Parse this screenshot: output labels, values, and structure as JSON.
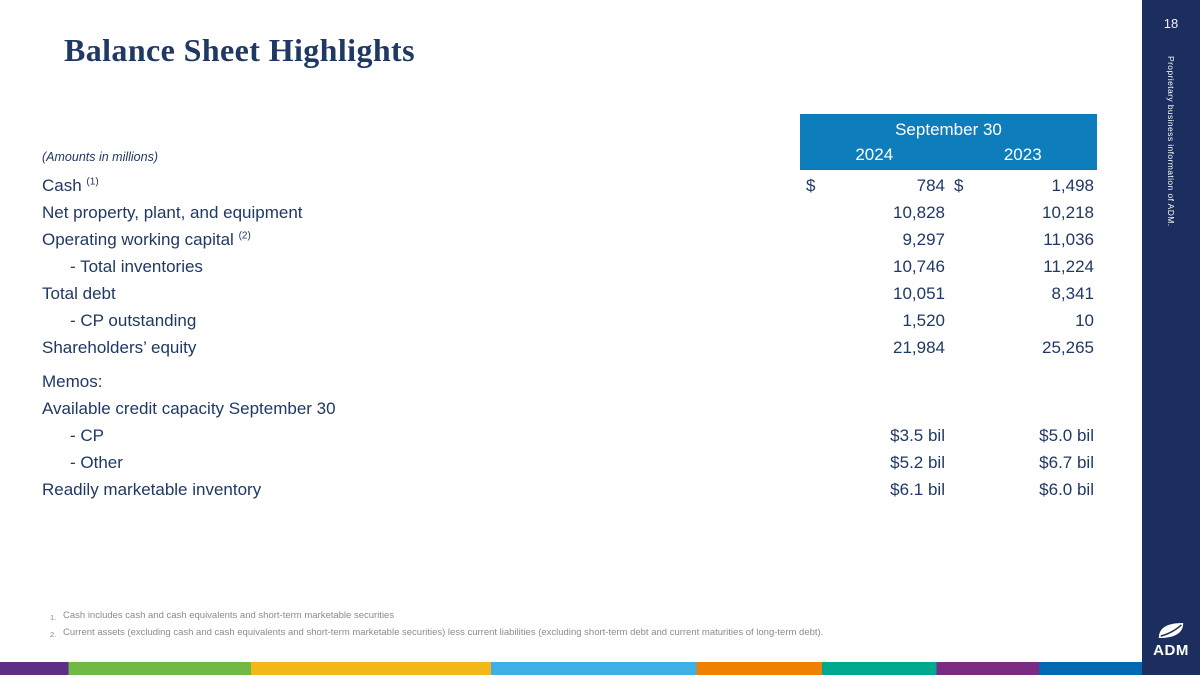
{
  "page": {
    "title": "Balance Sheet Highlights",
    "page_number": "18",
    "sidebar_note": "Proprietary business information of ADM.",
    "logo_text": "ADM"
  },
  "table": {
    "units_note": "(Amounts in millions)",
    "currency_symbol": "$",
    "header": {
      "group": "September 30",
      "col1": "2024",
      "col2": "2023"
    },
    "rows": [
      {
        "label": "Cash",
        "sup": "(1)",
        "dollar": true,
        "v2024": "784",
        "v2023": "1,498"
      },
      {
        "label": "Net property, plant, and equipment",
        "v2024": "10,828",
        "v2023": "10,218"
      },
      {
        "label": "Operating working capital",
        "sup": "(2)",
        "v2024": "9,297",
        "v2023": "11,036"
      },
      {
        "label": "- Total inventories",
        "indent": true,
        "v2024": "10,746",
        "v2023": "11,224"
      },
      {
        "label": "Total debt",
        "v2024": "10,051",
        "v2023": "8,341"
      },
      {
        "label": "- CP outstanding",
        "indent": true,
        "v2024": "1,520",
        "v2023": "10"
      },
      {
        "label": "Shareholders’ equity",
        "v2024": "21,984",
        "v2023": "25,265"
      },
      {
        "label": "Memos:",
        "gap_before": true
      },
      {
        "label": "Available credit capacity September 30"
      },
      {
        "label": "- CP",
        "indent": true,
        "v2024": "$3.5 bil",
        "v2023": "$5.0 bil"
      },
      {
        "label": "- Other",
        "indent": true,
        "v2024": "$5.2 bil",
        "v2023": "$6.7 bil"
      },
      {
        "label": "Readily marketable inventory",
        "v2024": "$6.1 bil",
        "v2023": "$6.0 bil"
      }
    ]
  },
  "footnotes": [
    {
      "num": "1.",
      "text": "Cash includes cash and cash equivalents and short-term marketable securities"
    },
    {
      "num": "2.",
      "text": "Current assets (excluding cash and cash equivalents and short-term marketable securities) less current liabilities (excluding short-term debt and current maturities of long-term debt)."
    }
  ],
  "colors": {
    "title_navy": "#1f3864",
    "header_teal": "#0e7dbc",
    "sidebar_navy": "#1b2e5e",
    "footnote_gray": "#8b8b8b"
  },
  "stripe": {
    "segments": [
      {
        "color": "#5e2d84",
        "to": 6
      },
      {
        "color": "#6fb944",
        "to": 22
      },
      {
        "color": "#f2b719",
        "to": 43
      },
      {
        "color": "#3fb0e5",
        "to": 61
      },
      {
        "color": "#ee8100",
        "to": 72
      },
      {
        "color": "#00a88e",
        "to": 82
      },
      {
        "color": "#7c2b83",
        "to": 91
      },
      {
        "color": "#0069b1",
        "to": 100
      }
    ]
  }
}
